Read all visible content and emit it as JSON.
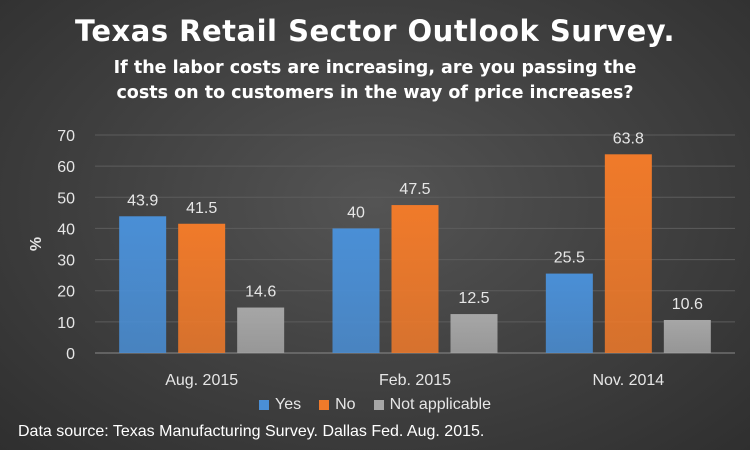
{
  "chart_data": {
    "type": "bar",
    "title": "Texas Retail Sector Outlook Survey.",
    "subtitle_lines": [
      "If the labor costs are increasing, are you passing the",
      "costs on to customers in the way of price increases?"
    ],
    "ylabel": "%",
    "xlabel": "",
    "ylim": [
      0,
      70
    ],
    "yticks": [
      0,
      10,
      20,
      30,
      40,
      50,
      60,
      70
    ],
    "grid": true,
    "legend_position": "bottom",
    "categories": [
      "Aug. 2015",
      "Feb. 2015",
      "Nov. 2014"
    ],
    "series": [
      {
        "name": "Yes",
        "values": [
          43.9,
          40,
          25.5
        ],
        "color": "#4a8fd6"
      },
      {
        "name": "No",
        "values": [
          41.5,
          47.5,
          63.8
        ],
        "color": "#f07a2a"
      },
      {
        "name": "Not applicable",
        "values": [
          14.6,
          12.5,
          10.6
        ],
        "color": "#a6a6a6"
      }
    ],
    "data_labels": [
      [
        "43.9",
        "40",
        "25.5"
      ],
      [
        "41.5",
        "47.5",
        "63.8"
      ],
      [
        "14.6",
        "12.5",
        "10.6"
      ]
    ]
  },
  "footer": {
    "source": "Data source: Texas Manufacturing Survey. Dallas Fed. Aug. 2015."
  }
}
